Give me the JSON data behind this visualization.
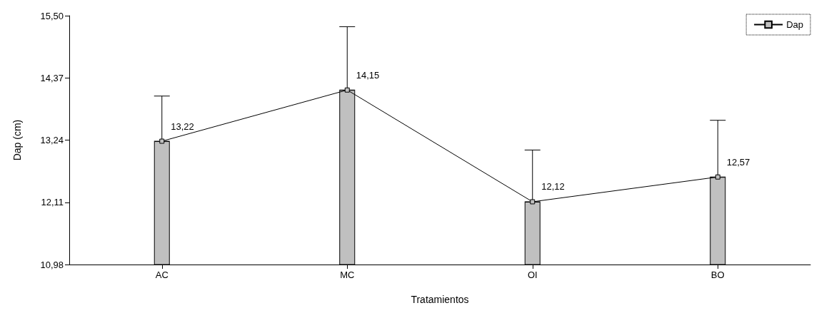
{
  "chart_data": {
    "type": "bar",
    "xlabel": "Tratamientos",
    "ylabel": "Dap (cm)",
    "categories": [
      "AC",
      "MC",
      "OI",
      "BO"
    ],
    "series": [
      {
        "color": "#c0c0c0",
        "values": [
          13.22,
          14.15,
          12.12,
          12.57
        ],
        "errors": [
          [
            13.22,
            14.04
          ],
          [
            14.15,
            15.3
          ],
          [
            12.12,
            13.06
          ],
          [
            12.57,
            13.6
          ]
        ]
      },
      {
        "type": "line",
        "name": "Dap",
        "color": "#000000",
        "marker": "square",
        "values": [
          13.22,
          14.15,
          12.12,
          12.57
        ],
        "value_labels": [
          "13,22",
          "14,15",
          "12,12",
          "12,57"
        ]
      }
    ],
    "ylim": [
      10.98,
      15.5
    ],
    "yticks": [
      {
        "value": 10.98,
        "label": "10,98"
      },
      {
        "value": 12.11,
        "label": "12,11"
      },
      {
        "value": 13.24,
        "label": "13,24"
      },
      {
        "value": 14.37,
        "label": "14,37"
      },
      {
        "value": 15.5,
        "label": "15,50"
      }
    ],
    "grid": false,
    "legend": "top right"
  }
}
